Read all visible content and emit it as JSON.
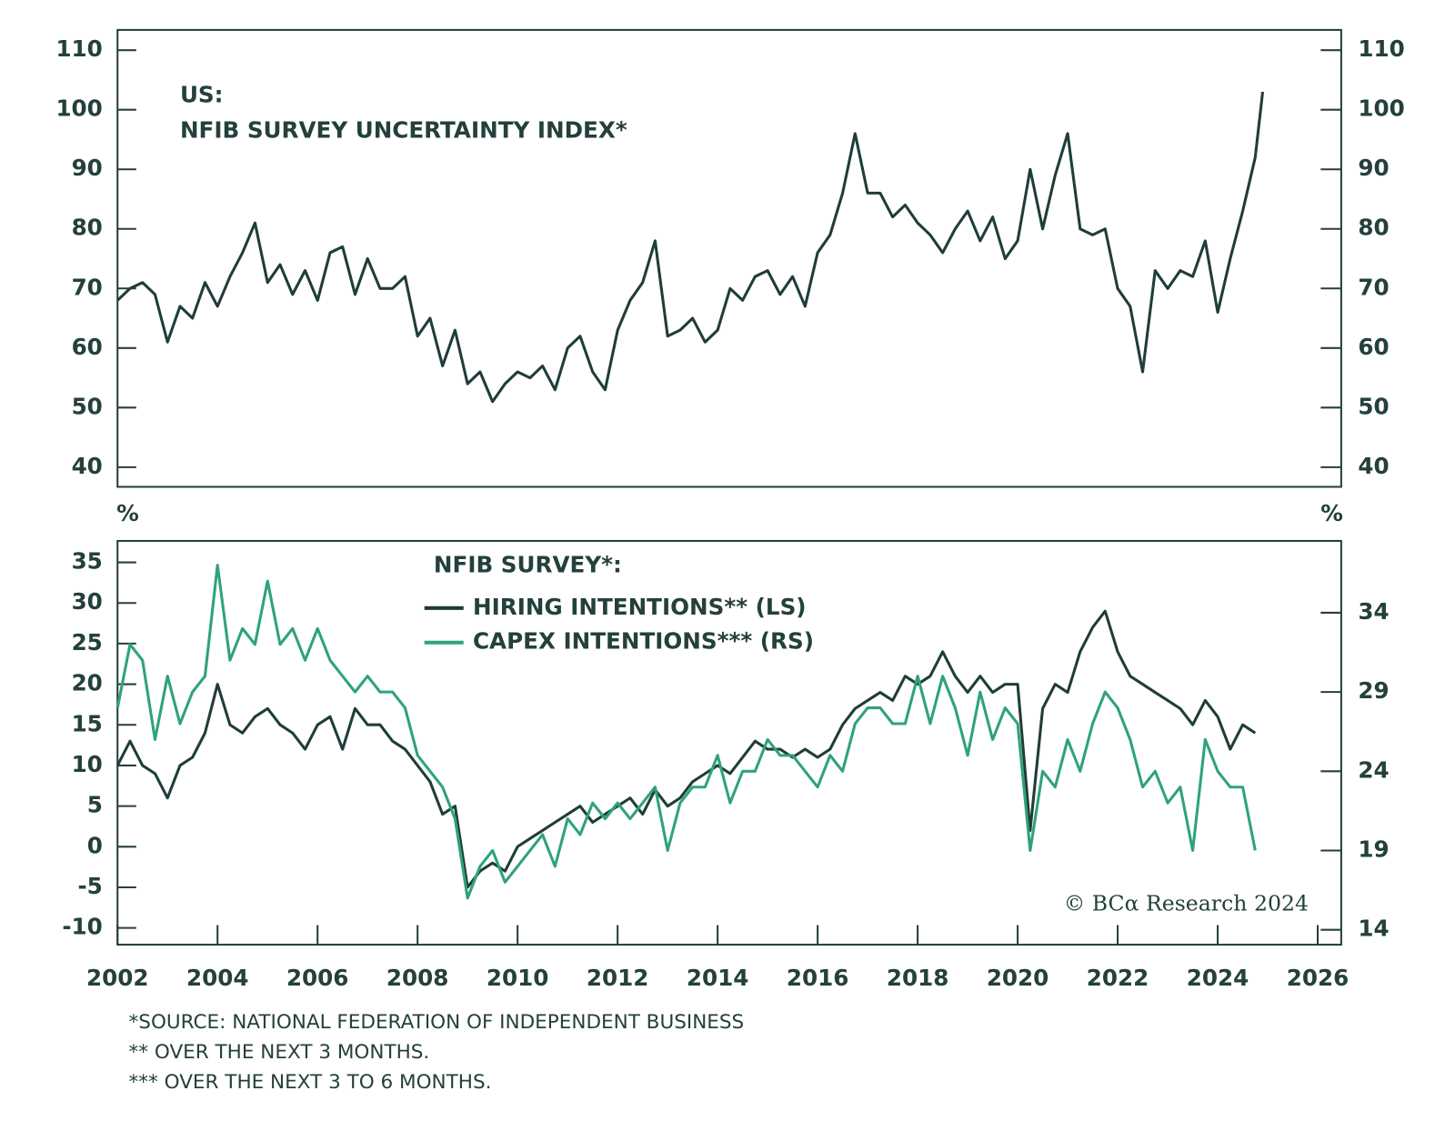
{
  "chart_data": [
    {
      "type": "line",
      "title": "US:",
      "subtitle": "NFIB SURVEY UNCERTAINTY INDEX*",
      "x": [
        2002.0,
        2002.25,
        2002.5,
        2002.75,
        2003.0,
        2003.25,
        2003.5,
        2003.75,
        2004.0,
        2004.25,
        2004.5,
        2004.75,
        2005.0,
        2005.25,
        2005.5,
        2005.75,
        2006.0,
        2006.25,
        2006.5,
        2006.75,
        2007.0,
        2007.25,
        2007.5,
        2007.75,
        2008.0,
        2008.25,
        2008.5,
        2008.75,
        2009.0,
        2009.25,
        2009.5,
        2009.75,
        2010.0,
        2010.25,
        2010.5,
        2010.75,
        2011.0,
        2011.25,
        2011.5,
        2011.75,
        2012.0,
        2012.25,
        2012.5,
        2012.75,
        2013.0,
        2013.25,
        2013.5,
        2013.75,
        2014.0,
        2014.25,
        2014.5,
        2014.75,
        2015.0,
        2015.25,
        2015.5,
        2015.75,
        2016.0,
        2016.25,
        2016.5,
        2016.75,
        2017.0,
        2017.25,
        2017.5,
        2017.75,
        2018.0,
        2018.25,
        2018.5,
        2018.75,
        2019.0,
        2019.25,
        2019.5,
        2019.75,
        2020.0,
        2020.25,
        2020.5,
        2020.75,
        2021.0,
        2021.25,
        2021.5,
        2021.75,
        2022.0,
        2022.25,
        2022.5,
        2022.75,
        2023.0,
        2023.25,
        2023.5,
        2023.75,
        2024.0,
        2024.25,
        2024.5,
        2024.75,
        2024.9
      ],
      "xlim": [
        2002,
        2026.47
      ],
      "ylim": [
        36.7,
        113.4
      ],
      "yticks": [
        40,
        50,
        60,
        70,
        80,
        90,
        100,
        110
      ],
      "right_axis_mirror": true,
      "series": [
        {
          "name": "NFIB SURVEY UNCERTAINTY INDEX*",
          "color": "#1f3d3a",
          "values": [
            68,
            70,
            71,
            69,
            61,
            67,
            65,
            71,
            67,
            72,
            76,
            81,
            71,
            74,
            69,
            73,
            68,
            76,
            77,
            69,
            75,
            70,
            70,
            72,
            62,
            65,
            57,
            63,
            54,
            56,
            51,
            54,
            56,
            55,
            57,
            53,
            60,
            62,
            56,
            53,
            63,
            68,
            71,
            78,
            62,
            63,
            65,
            61,
            63,
            70,
            68,
            72,
            73,
            69,
            72,
            67,
            76,
            79,
            86,
            96,
            86,
            86,
            82,
            84,
            81,
            79,
            76,
            80,
            83,
            78,
            82,
            75,
            78,
            90,
            80,
            89,
            96,
            80,
            79,
            80,
            70,
            67,
            56,
            73,
            70,
            73,
            72,
            78,
            66,
            75,
            83,
            92,
            103
          ]
        }
      ]
    },
    {
      "type": "line",
      "title": "NFIB SURVEY*:",
      "ylabel": "%",
      "y2label": "%",
      "x": [
        2002.0,
        2002.25,
        2002.5,
        2002.75,
        2003.0,
        2003.25,
        2003.5,
        2003.75,
        2004.0,
        2004.25,
        2004.5,
        2004.75,
        2005.0,
        2005.25,
        2005.5,
        2005.75,
        2006.0,
        2006.25,
        2006.5,
        2006.75,
        2007.0,
        2007.25,
        2007.5,
        2007.75,
        2008.0,
        2008.25,
        2008.5,
        2008.75,
        2009.0,
        2009.25,
        2009.5,
        2009.75,
        2010.0,
        2010.25,
        2010.5,
        2010.75,
        2011.0,
        2011.25,
        2011.5,
        2011.75,
        2012.0,
        2012.25,
        2012.5,
        2012.75,
        2013.0,
        2013.25,
        2013.5,
        2013.75,
        2014.0,
        2014.25,
        2014.5,
        2014.75,
        2015.0,
        2015.25,
        2015.5,
        2015.75,
        2016.0,
        2016.25,
        2016.5,
        2016.75,
        2017.0,
        2017.25,
        2017.5,
        2017.75,
        2018.0,
        2018.25,
        2018.5,
        2018.75,
        2019.0,
        2019.25,
        2019.5,
        2019.75,
        2020.0,
        2020.25,
        2020.5,
        2020.75,
        2021.0,
        2021.25,
        2021.5,
        2021.75,
        2022.0,
        2022.25,
        2022.5,
        2022.75,
        2023.0,
        2023.25,
        2023.5,
        2023.75,
        2024.0,
        2024.25,
        2024.5,
        2024.75
      ],
      "xlim": [
        2002,
        2026.47
      ],
      "xticks": [
        2002,
        2004,
        2006,
        2008,
        2010,
        2012,
        2014,
        2016,
        2018,
        2020,
        2022,
        2024,
        2026
      ],
      "ylim": [
        -12.06,
        37.64
      ],
      "yticks": [
        -10,
        -5,
        0,
        5,
        10,
        15,
        20,
        25,
        30,
        35
      ],
      "y2lim": [
        13.06,
        38.53
      ],
      "y2ticks": [
        14,
        19,
        24,
        29,
        34
      ],
      "series": [
        {
          "name": "HIRING INTENTIONS** (LS)",
          "color": "#1f3d3a",
          "values": [
            10,
            13,
            10,
            9,
            6,
            10,
            11,
            14,
            20,
            15,
            14,
            16,
            17,
            15,
            14,
            12,
            15,
            16,
            12,
            17,
            15,
            15,
            13,
            12,
            10,
            8,
            4,
            5,
            -5,
            -3,
            -2,
            -3,
            0,
            1,
            2,
            3,
            4,
            5,
            3,
            4,
            5,
            6,
            4,
            7,
            5,
            6,
            8,
            9,
            10,
            9,
            11,
            13,
            12,
            12,
            11,
            12,
            11,
            12,
            15,
            17,
            18,
            19,
            18,
            21,
            20,
            21,
            24,
            21,
            19,
            21,
            19,
            20,
            20,
            2,
            17,
            20,
            19,
            24,
            27,
            29,
            24,
            21,
            20,
            19,
            18,
            17,
            15,
            18,
            16,
            12,
            15,
            14
          ]
        },
        {
          "name": "CAPEX INTENTIONS*** (RS)",
          "color": "#2fa378",
          "axis": "y2",
          "values": [
            28,
            32,
            31,
            26,
            30,
            27,
            29,
            30,
            37,
            31,
            33,
            32,
            36,
            32,
            33,
            31,
            33,
            31,
            30,
            29,
            30,
            29,
            29,
            28,
            25,
            24,
            23,
            21,
            16,
            18,
            19,
            17,
            18,
            19,
            20,
            18,
            21,
            20,
            22,
            21,
            22,
            21,
            22,
            23,
            19,
            22,
            23,
            23,
            25,
            22,
            24,
            24,
            26,
            25,
            25,
            24,
            23,
            25,
            24,
            27,
            28,
            28,
            27,
            27,
            30,
            27,
            30,
            28,
            25,
            29,
            26,
            28,
            27,
            19,
            24,
            23,
            26,
            24,
            27,
            29,
            28,
            26,
            23,
            24,
            22,
            23,
            19,
            26,
            24,
            23,
            23,
            19
          ]
        }
      ],
      "annotation": "© BCα Research 2024",
      "footnotes": [
        "*SOURCE: NATIONAL FEDERATION OF INDEPENDENT BUSINESS",
        "** OVER THE NEXT 3 MONTHS.",
        "*** OVER THE NEXT 3 TO 6 MONTHS."
      ]
    }
  ]
}
